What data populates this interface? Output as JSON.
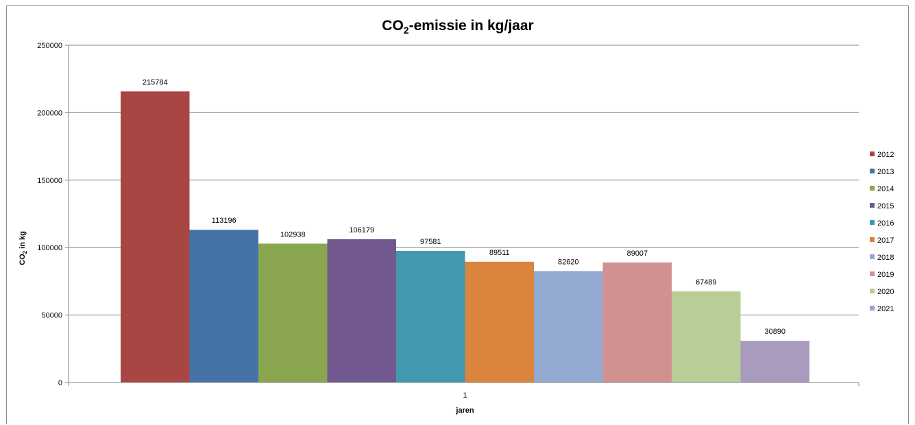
{
  "chart_data": {
    "type": "bar",
    "title_main": "CO",
    "title_sub": "2",
    "title_rest": "-emissie in kg/jaar",
    "ylabel_main": "CO",
    "ylabel_sub": "2",
    "ylabel_rest": " in kg",
    "xlabel": "jaren",
    "categories": [
      "1"
    ],
    "ylim": [
      0,
      250000
    ],
    "yticks": [
      0,
      50000,
      100000,
      150000,
      200000,
      250000
    ],
    "grid": true,
    "legend_position": "right",
    "series": [
      {
        "name": "2012",
        "values": [
          215784
        ],
        "color": "#a84643"
      },
      {
        "name": "2013",
        "values": [
          113196
        ],
        "color": "#4572a7"
      },
      {
        "name": "2014",
        "values": [
          102938
        ],
        "color": "#89a54e"
      },
      {
        "name": "2015",
        "values": [
          106179
        ],
        "color": "#71588f"
      },
      {
        "name": "2016",
        "values": [
          97581
        ],
        "color": "#4198af"
      },
      {
        "name": "2017",
        "values": [
          89511
        ],
        "color": "#db843d"
      },
      {
        "name": "2018",
        "values": [
          82620
        ],
        "color": "#93a9cf"
      },
      {
        "name": "2019",
        "values": [
          89007
        ],
        "color": "#d09190"
      },
      {
        "name": "2020",
        "values": [
          67489
        ],
        "color": "#b9cd96"
      },
      {
        "name": "2021",
        "values": [
          30890
        ],
        "color": "#a99bbd"
      }
    ]
  }
}
